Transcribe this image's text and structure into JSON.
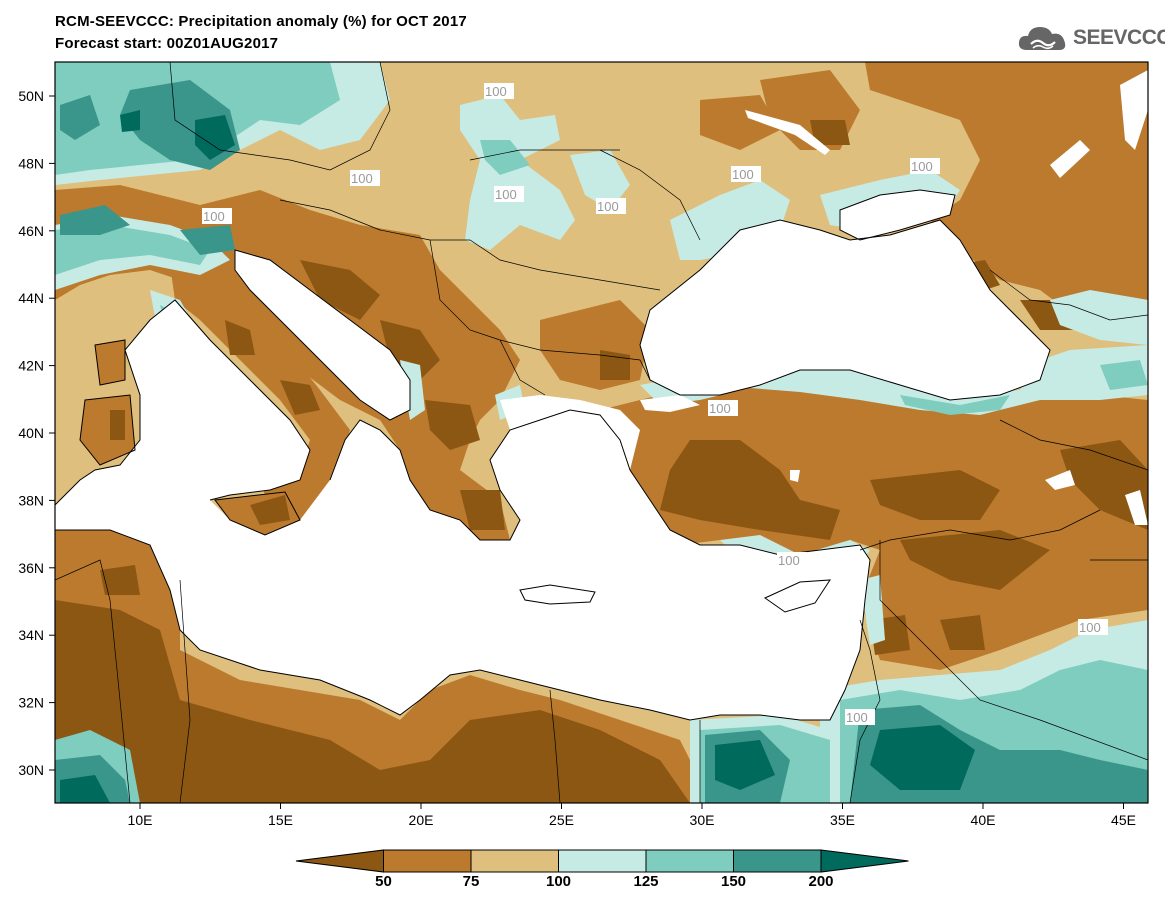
{
  "title": {
    "line1": "RCM-SEEVCCC: Precipitation anomaly (%) for OCT 2017",
    "line2": "Forecast start: 00Z01AUG2017"
  },
  "logo": {
    "text": "SEEVCCC",
    "icon": "cloud-icon"
  },
  "axes": {
    "lon_ticks": [
      "10E",
      "15E",
      "20E",
      "25E",
      "30E",
      "35E",
      "40E",
      "45E"
    ],
    "lat_ticks": [
      "50N",
      "48N",
      "46N",
      "44N",
      "42N",
      "40N",
      "38N",
      "36N",
      "34N",
      "32N",
      "30N"
    ]
  },
  "contour_label": "100",
  "colorbar": {
    "labels": [
      "50",
      "75",
      "100",
      "125",
      "150",
      "200"
    ],
    "colors": [
      "#8c5712",
      "#bb7a2d",
      "#dfbf7d",
      "#c6ebe5",
      "#7ecdbf",
      "#3a958b",
      "#006a5d"
    ]
  },
  "colors": {
    "sea": "#ffffff",
    "coast": "#000000",
    "c_lt50": "#8c5712",
    "c_50_75": "#bb7a2d",
    "c_75_100": "#dfbf7d",
    "c_100_125": "#c6ebe5",
    "c_125_150": "#7ecdbf",
    "c_150_200": "#3a958b",
    "c_gt200": "#006a5d"
  }
}
